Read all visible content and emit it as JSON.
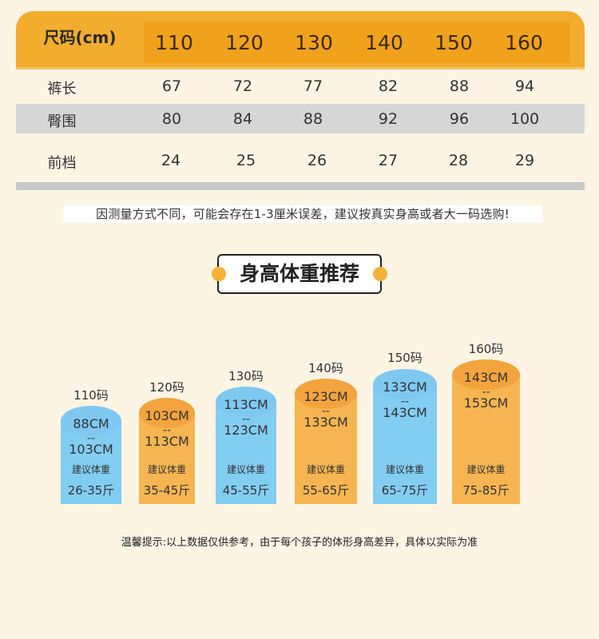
{
  "size_table": {
    "header_label": "尺码(cm)",
    "sizes": [
      "110",
      "120",
      "130",
      "140",
      "150",
      "160"
    ],
    "rows": [
      {
        "label": "裤长",
        "values": [
          "67",
          "72",
          "77",
          "82",
          "88",
          "94"
        ]
      },
      {
        "label": "臀围",
        "values": [
          "80",
          "84",
          "88",
          "92",
          "96",
          "100"
        ]
      },
      {
        "label": "前档",
        "values": [
          "24",
          "25",
          "26",
          "27",
          "28",
          "29"
        ]
      }
    ]
  },
  "note": "因测量方式不同，可能会存在1-3厘米误差，建议按真实身高或者大一码选购!",
  "banner_title": "身高体重推荐",
  "recommendations": [
    {
      "size_label": "110码",
      "height_from": "88CM",
      "dash": "--",
      "height_to": "103CM",
      "weight_label": "建议体重",
      "weight": "26-35斤",
      "color": "blue"
    },
    {
      "size_label": "120码",
      "height_from": "103CM",
      "dash": "--",
      "height_to": "113CM",
      "weight_label": "建议体重",
      "weight": "35-45斤",
      "color": "orange"
    },
    {
      "size_label": "130码",
      "height_from": "113CM",
      "dash": "--",
      "height_to": "123CM",
      "weight_label": "建议体重",
      "weight": "45-55斤",
      "color": "blue"
    },
    {
      "size_label": "140码",
      "height_from": "123CM",
      "dash": "--",
      "height_to": "133CM",
      "weight_label": "建议体重",
      "weight": "55-65斤",
      "color": "orange"
    },
    {
      "size_label": "150码",
      "height_from": "133CM",
      "dash": "--",
      "height_to": "143CM",
      "weight_label": "建议体重",
      "weight": "65-75斤",
      "color": "blue"
    },
    {
      "size_label": "160码",
      "height_from": "143CM",
      "dash": "--",
      "height_to": "153CM",
      "weight_label": "建议体重",
      "weight": "75-85斤",
      "color": "orange"
    }
  ],
  "tip": "温馨提示:以上数据仅供参考，由于每个孩子的体形身高差异，具体以实际为准",
  "colors": {
    "header_bg": "#f3ad2d",
    "blue": "#82cdf2",
    "orange": "#f6b551",
    "orange_top": "#f4a43e",
    "blue_top": "#7ec8f2",
    "page_bg": "#fdf4e4",
    "shade_row": "#d6d6d6"
  }
}
